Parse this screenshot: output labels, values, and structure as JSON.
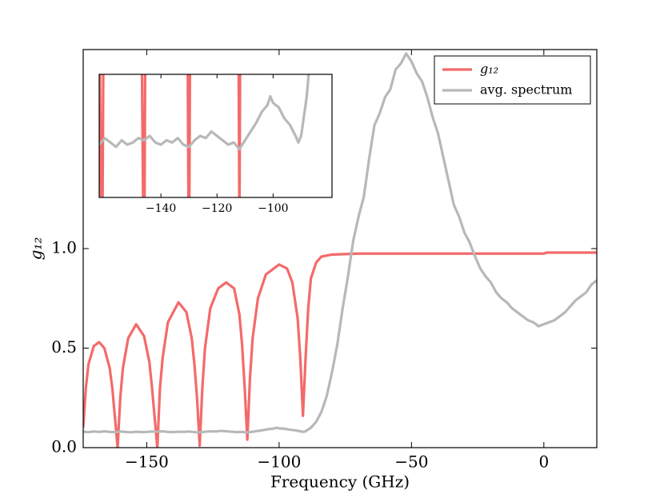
{
  "chart_data": {
    "type": "line",
    "xlabel": "Frequency (GHz)",
    "ylabel": "g₁₂",
    "xlim": [
      -174,
      20
    ],
    "ylim": [
      0,
      2
    ],
    "xticks": [
      {
        "value": -150,
        "label": "−150"
      },
      {
        "value": -100,
        "label": "−100"
      },
      {
        "value": -50,
        "label": "−50"
      },
      0
    ],
    "yticks": [
      {
        "value": 0,
        "label": "0.0"
      },
      {
        "value": 0.5,
        "label": "0.5"
      },
      {
        "value": 1,
        "label": "1.0"
      }
    ],
    "legend": "upper right",
    "series": [
      {
        "name": "g₁₂",
        "color": "#f46a6a",
        "x": [
          -174,
          -173,
          -172,
          -170,
          -168,
          -166,
          -164,
          -163,
          -162,
          -161,
          -160,
          -159,
          -157,
          -154,
          -151,
          -149,
          -148,
          -147,
          -146,
          -145,
          -144,
          -142,
          -138,
          -135,
          -133,
          -132,
          -131,
          -130,
          -129,
          -128,
          -126,
          -123,
          -120,
          -117,
          -115,
          -114,
          -113,
          -112,
          -111,
          -110,
          -108,
          -105,
          -100,
          -97,
          -95,
          -93,
          -92,
          -91,
          -90,
          -89,
          -88,
          -86,
          -84,
          -80,
          -70,
          0,
          1,
          20
        ],
        "values": [
          0.1,
          0.3,
          0.42,
          0.51,
          0.53,
          0.5,
          0.4,
          0.3,
          0.15,
          0,
          0.25,
          0.4,
          0.55,
          0.62,
          0.56,
          0.43,
          0.3,
          0.15,
          0,
          0.3,
          0.45,
          0.63,
          0.73,
          0.68,
          0.55,
          0.42,
          0.25,
          0.01,
          0.3,
          0.5,
          0.7,
          0.8,
          0.83,
          0.8,
          0.67,
          0.52,
          0.3,
          0.04,
          0.35,
          0.55,
          0.75,
          0.87,
          0.92,
          0.9,
          0.83,
          0.65,
          0.45,
          0.16,
          0.45,
          0.7,
          0.85,
          0.93,
          0.96,
          0.97,
          0.975,
          0.975,
          0.98,
          0.98
        ]
      },
      {
        "name": "avg. spectrum",
        "color": "#b8b8b8",
        "x": [
          -174,
          -172,
          -170,
          -168,
          -166,
          -164,
          -162,
          -160,
          -158,
          -156,
          -154,
          -152,
          -150,
          -148,
          -146,
          -144,
          -142,
          -140,
          -138,
          -136,
          -134,
          -132,
          -130,
          -128,
          -126,
          -124,
          -122,
          -120,
          -118,
          -116,
          -114,
          -112,
          -110,
          -108,
          -106,
          -104,
          -102,
          -101,
          -100,
          -98,
          -96,
          -94,
          -92,
          -91,
          -90,
          -88,
          -86,
          -84,
          -82,
          -80,
          -78,
          -76,
          -74,
          -72,
          -70,
          -68,
          -66,
          -64,
          -62,
          -60,
          -58,
          -56,
          -54,
          -52,
          -50,
          -48,
          -46,
          -44,
          -42,
          -40,
          -38,
          -36,
          -34,
          -32,
          -30,
          -28,
          -26,
          -24,
          -22,
          -20,
          -18,
          -16,
          -14,
          -12,
          -10,
          -8,
          -6,
          -4,
          -2,
          0,
          2,
          4,
          6,
          8,
          10,
          12,
          14,
          16,
          18,
          20
        ],
        "values": [
          0.08,
          0.078,
          0.081,
          0.079,
          0.082,
          0.079,
          0.078,
          0.081,
          0.079,
          0.077,
          0.08,
          0.078,
          0.079,
          0.081,
          0.08,
          0.082,
          0.079,
          0.078,
          0.08,
          0.079,
          0.081,
          0.078,
          0.077,
          0.08,
          0.082,
          0.081,
          0.084,
          0.082,
          0.08,
          0.078,
          0.079,
          0.076,
          0.08,
          0.084,
          0.088,
          0.093,
          0.096,
          0.1,
          0.097,
          0.095,
          0.09,
          0.087,
          0.082,
          0.079,
          0.082,
          0.1,
          0.13,
          0.18,
          0.26,
          0.38,
          0.52,
          0.7,
          0.86,
          1.04,
          1.16,
          1.26,
          1.45,
          1.62,
          1.68,
          1.76,
          1.8,
          1.9,
          1.93,
          1.98,
          1.94,
          1.88,
          1.84,
          1.76,
          1.66,
          1.58,
          1.46,
          1.34,
          1.22,
          1.16,
          1.08,
          1.03,
          0.96,
          0.9,
          0.86,
          0.83,
          0.78,
          0.75,
          0.73,
          0.7,
          0.68,
          0.66,
          0.64,
          0.63,
          0.61,
          0.62,
          0.63,
          0.64,
          0.66,
          0.68,
          0.71,
          0.74,
          0.76,
          0.78,
          0.82,
          0.84
        ]
      }
    ],
    "inset": {
      "xlim": [
        -162,
        -79
      ],
      "ylim": [
        0.054,
        0.11
      ],
      "xticks": [
        {
          "value": -140,
          "label": "−140"
        },
        {
          "value": -120,
          "label": "−120"
        },
        {
          "value": -100,
          "label": "−100"
        }
      ]
    }
  }
}
